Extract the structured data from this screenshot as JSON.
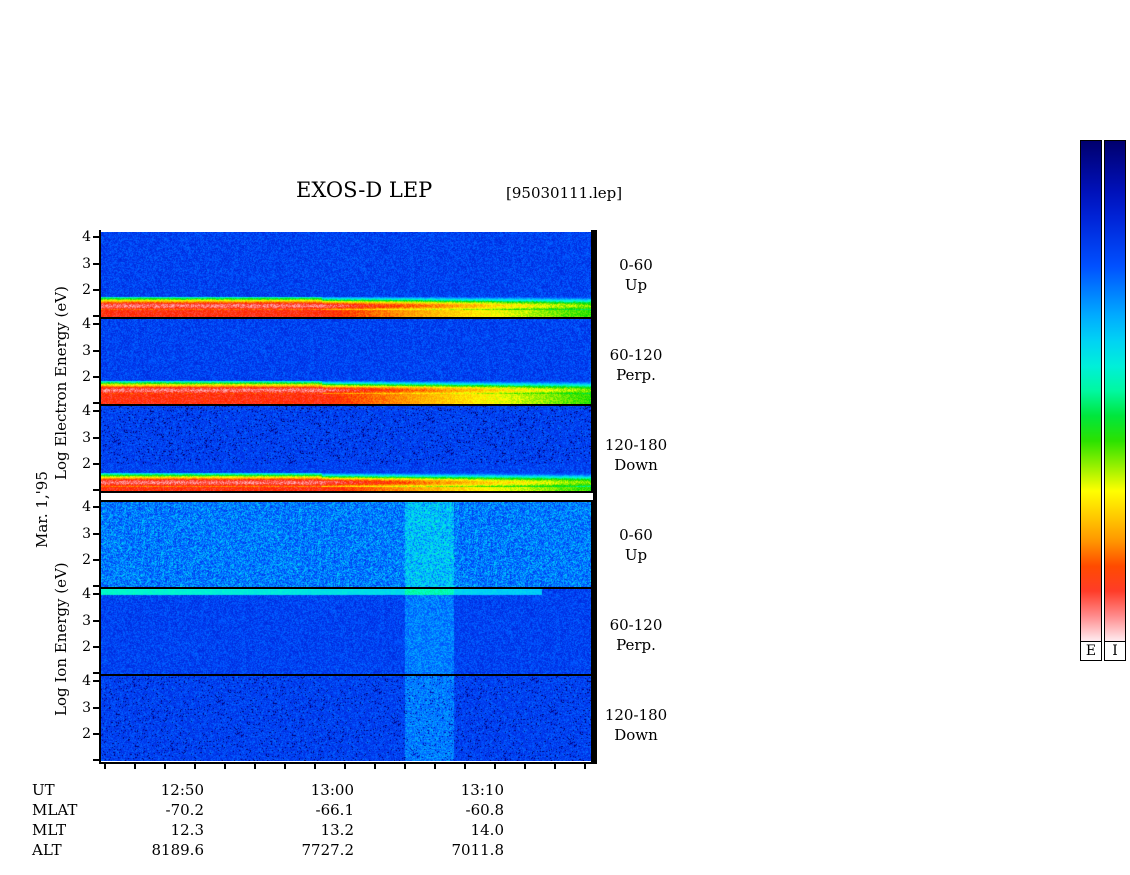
{
  "header": {
    "title": "EXOS-D LEP",
    "file": "[95030111.lep]"
  },
  "date_label": "Mar. 1,'95",
  "electron_axis_label": "Log  Electron  Energy (eV)",
  "ion_axis_label": "Log  Ion  Energy (eV)",
  "chart_data": {
    "type": "heatmap",
    "title": "EXOS-D LEP",
    "x_ticks": [
      "12:50",
      "13:00",
      "13:10"
    ],
    "y_ticks": [
      "1",
      "2",
      "3",
      "4"
    ],
    "panels": [
      {
        "species": "Electron",
        "pitch_range": "0-60",
        "direction": "Up",
        "ylim": [
          1,
          4.2
        ],
        "peak_band_log_energy": 1.4
      },
      {
        "species": "Electron",
        "pitch_range": "60-120",
        "direction": "Perp.",
        "ylim": [
          1,
          4.2
        ],
        "peak_band_log_energy": 1.5
      },
      {
        "species": "Electron",
        "pitch_range": "120-180",
        "direction": "Down",
        "ylim": [
          1,
          4.2
        ],
        "peak_band_log_energy": 1.3
      },
      {
        "species": "Ion",
        "pitch_range": "0-60",
        "direction": "Up",
        "ylim": [
          1,
          4.2
        ]
      },
      {
        "species": "Ion",
        "pitch_range": "60-120",
        "direction": "Perp.",
        "ylim": [
          1,
          4.2
        ]
      },
      {
        "species": "Ion",
        "pitch_range": "120-180",
        "direction": "Down",
        "ylim": [
          1,
          4.2
        ]
      }
    ],
    "ephemeris": [
      {
        "label": "UT",
        "values": [
          "12:50",
          "13:00",
          "13:10"
        ]
      },
      {
        "label": "MLAT",
        "values": [
          "-70.2",
          "-66.1",
          "-60.8"
        ]
      },
      {
        "label": "MLT",
        "values": [
          "12.3",
          "13.2",
          "14.0"
        ]
      },
      {
        "label": "ALT",
        "values": [
          "8189.6",
          "7727.2",
          "7011.8"
        ]
      }
    ],
    "colorbars": [
      {
        "label": "E"
      },
      {
        "label": "I"
      }
    ]
  }
}
